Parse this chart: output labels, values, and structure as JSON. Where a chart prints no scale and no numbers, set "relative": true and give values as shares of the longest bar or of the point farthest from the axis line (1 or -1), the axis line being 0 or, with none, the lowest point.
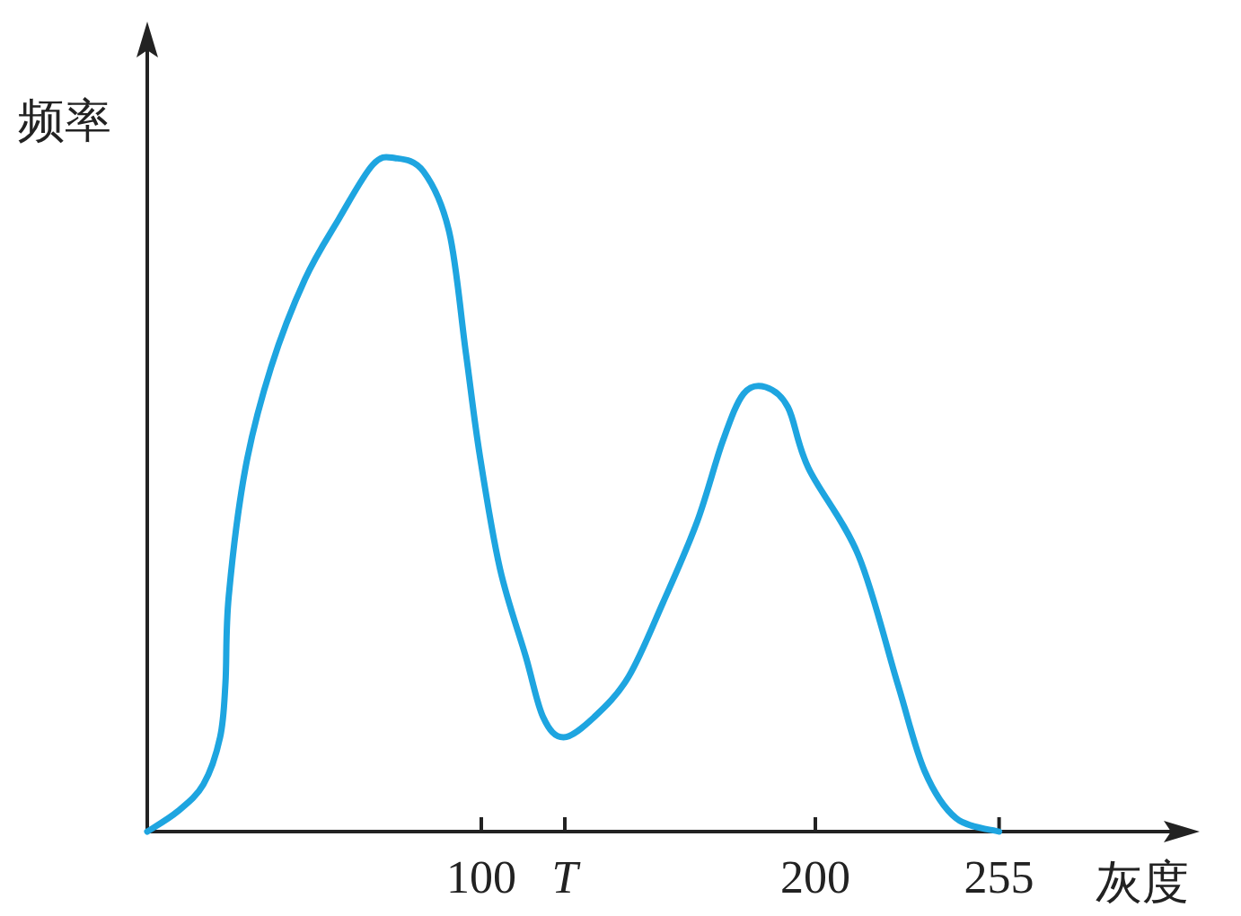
{
  "chart_data": {
    "type": "line",
    "xlabel": "灰度",
    "ylabel": "频率",
    "relative": true,
    "x": [
      0,
      9.1,
      16.8,
      21.8,
      23.4,
      24.4,
      29.4,
      37.1,
      47.2,
      57.4,
      67.5,
      74.1,
      82.7,
      90.4,
      95.4,
      99.5,
      105.6,
      113.3,
      118.5,
      124.6,
      133.8,
      144.1,
      154.4,
      164.6,
      172.3,
      178.5,
      185.1,
      191.8,
      197.9,
      212.9,
      224.6,
      232.7,
      242.1,
      255
    ],
    "series": [
      {
        "color": "#1ea5e0",
        "values": [
          0,
          0.03,
          0.07,
          0.14,
          0.22,
          0.35,
          0.54,
          0.69,
          0.82,
          0.91,
          0.99,
          1,
          0.98,
          0.89,
          0.71,
          0.56,
          0.39,
          0.26,
          0.17,
          0.14,
          0.17,
          0.23,
          0.34,
          0.46,
          0.58,
          0.65,
          0.66,
          0.63,
          0.54,
          0.41,
          0.22,
          0.09,
          0.02,
          0
        ]
      }
    ],
    "xlim": [
      0,
      300
    ],
    "xticks": [
      100,
      {
        "value": 125,
        "label": "T"
      },
      200,
      255
    ],
    "grid": false,
    "marker": "none",
    "line_style": "solid"
  }
}
